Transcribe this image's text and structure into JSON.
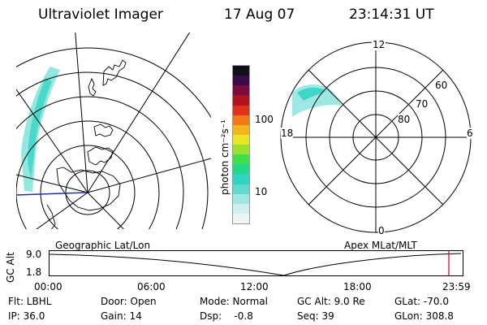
{
  "header": {
    "instrument": "Ultraviolet Imager",
    "date": "17 Aug 07",
    "time": "23:14:31 UT"
  },
  "left_panel": {
    "caption": "Geographic Lat/Lon"
  },
  "right_panel": {
    "caption": "Apex MLat/MLT",
    "mlt_labels": [
      "12",
      "18",
      "6",
      "0"
    ],
    "lat_labels": [
      "60",
      "70",
      "80"
    ]
  },
  "colorbar": {
    "unit_label": "photon cm⁻²s⁻¹",
    "ticks": [
      "100",
      "10"
    ],
    "colors": [
      "#ecf4f4",
      "#cfeeee",
      "#9fe6e2",
      "#5fd9d2",
      "#2fd4c0",
      "#22d98a",
      "#3ee04a",
      "#9be02e",
      "#e6e622",
      "#f5b51a",
      "#f07a12",
      "#e0321a",
      "#b0121e",
      "#7a0a40",
      "#3a0a4a",
      "#10101a"
    ]
  },
  "timeline": {
    "y_axis_label": "GC Alt",
    "y_ticks": [
      "9.0",
      "1.8"
    ],
    "x_ticks": [
      "00:00",
      "06:00",
      "12:00",
      "18:00",
      "23:59"
    ],
    "marker_color": "#cc0000"
  },
  "status": {
    "row1": {
      "flt": "Flt: LBHL",
      "door": "Door: Open",
      "mode": "Mode: Normal",
      "gcalt": "GC Alt: 9.0 Re",
      "glat": "GLat: -70.0"
    },
    "row2": {
      "ip": "IP: 36.0",
      "gain": "Gain: 14",
      "dsp": "Dsp:    -0.8",
      "seq": "Seq: 39",
      "glon": "GLon: 308.8"
    }
  }
}
